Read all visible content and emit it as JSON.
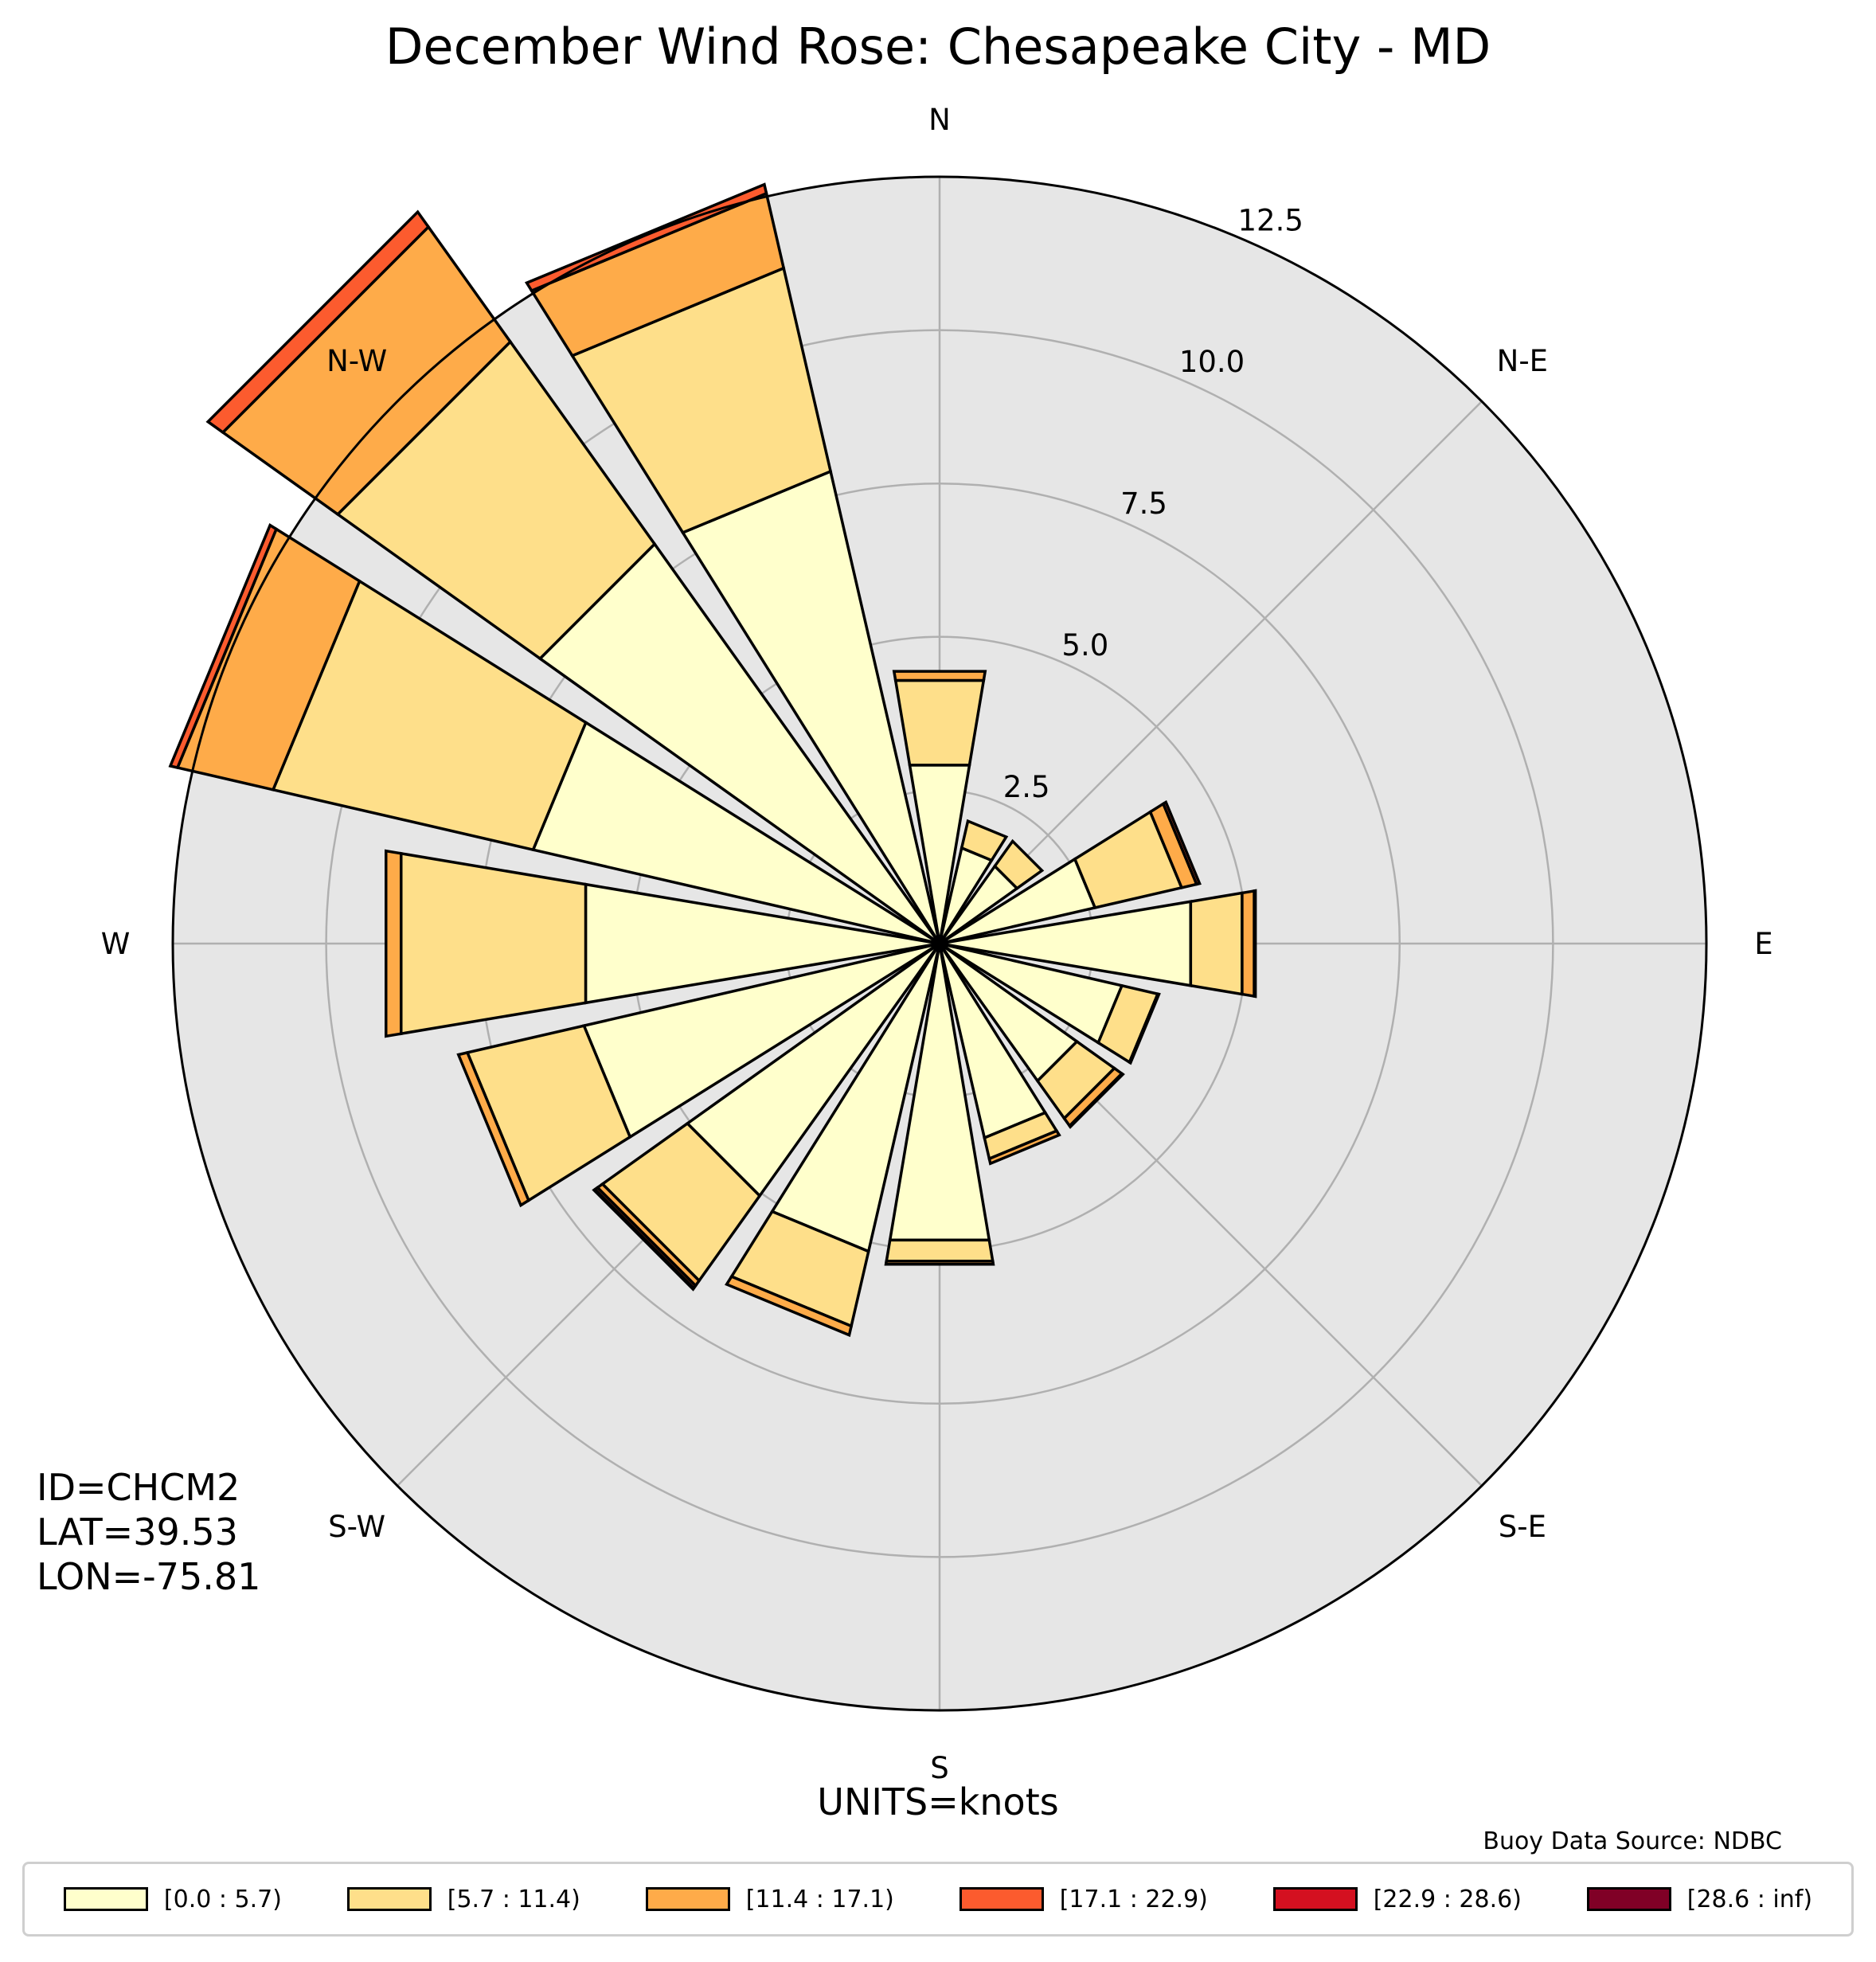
{
  "title": "December Wind Rose: Chesapeake City - MD",
  "station": {
    "id_text": "ID=CHCM2",
    "lat_text": "LAT=39.53",
    "lon_text": "LON=-75.81"
  },
  "units_text": "UNITS=knots",
  "source_text": "Buoy Data Source: NDBC",
  "chart_data": {
    "type": "bar",
    "subtype": "polar-stacked (wind rose)",
    "title": "December Wind Rose: Chesapeake City - MD",
    "direction_labels": [
      "N",
      "N-E",
      "E",
      "S-E",
      "S",
      "S-W",
      "W",
      "N-W"
    ],
    "categories": [
      "N",
      "NNE",
      "NE",
      "ENE",
      "E",
      "ESE",
      "SE",
      "SSE",
      "S",
      "SSW",
      "SW",
      "WSW",
      "W",
      "WNW",
      "NW",
      "NNW"
    ],
    "direction_degrees": [
      0,
      22.5,
      45,
      67.5,
      90,
      112.5,
      135,
      157.5,
      180,
      202.5,
      225,
      247.5,
      270,
      292.5,
      315,
      337.5
    ],
    "radial_ticks": [
      "2.5",
      "5.0",
      "7.5",
      "10.0",
      "12.5"
    ],
    "radial_tick_values": [
      2.5,
      5.0,
      7.5,
      10.0,
      12.5
    ],
    "rmax": 12.5,
    "grid": true,
    "legend_position": "bottom",
    "series": [
      {
        "name": "[0.0 : 5.7)",
        "color": "#FFFFCC",
        "values": [
          2.95,
          1.6,
          1.55,
          2.6,
          4.15,
          3.05,
          2.75,
          3.25,
          4.9,
          5.15,
          5.05,
          5.95,
          5.85,
          6.8,
          8.0,
          7.9
        ]
      },
      {
        "name": "[5.7 : 11.4)",
        "color": "#FEDF8A",
        "values": [
          1.4,
          0.45,
          0.5,
          1.45,
          0.85,
          0.6,
          0.75,
          0.35,
          0.35,
          1.25,
          1.7,
          1.95,
          3.05,
          4.35,
          4.05,
          3.4
        ]
      },
      {
        "name": "[11.4 : 17.1)",
        "color": "#FEAB49",
        "values": [
          0.15,
          0,
          0,
          0.25,
          0.2,
          0.02,
          0.15,
          0.08,
          0.05,
          0.15,
          0.1,
          0.15,
          0.25,
          1.6,
          2.3,
          1.25
        ]
      },
      {
        "name": "[17.1 : 22.9)",
        "color": "#FC5B2E",
        "values": [
          0,
          0,
          0,
          0.05,
          0,
          0,
          0,
          0,
          0,
          0,
          0.05,
          0,
          0,
          0.12,
          0.3,
          0.15
        ]
      },
      {
        "name": "[22.9 : 28.6)",
        "color": "#D41020",
        "values": [
          0,
          0,
          0,
          0,
          0.02,
          0,
          0.02,
          0,
          0,
          0,
          0.02,
          0,
          0,
          0,
          0,
          0
        ]
      },
      {
        "name": "[28.6 : inf)",
        "color": "#800026",
        "values": [
          0,
          0,
          0,
          0,
          0,
          0,
          0,
          0,
          0,
          0,
          0,
          0,
          0,
          0,
          0,
          0
        ]
      }
    ]
  }
}
